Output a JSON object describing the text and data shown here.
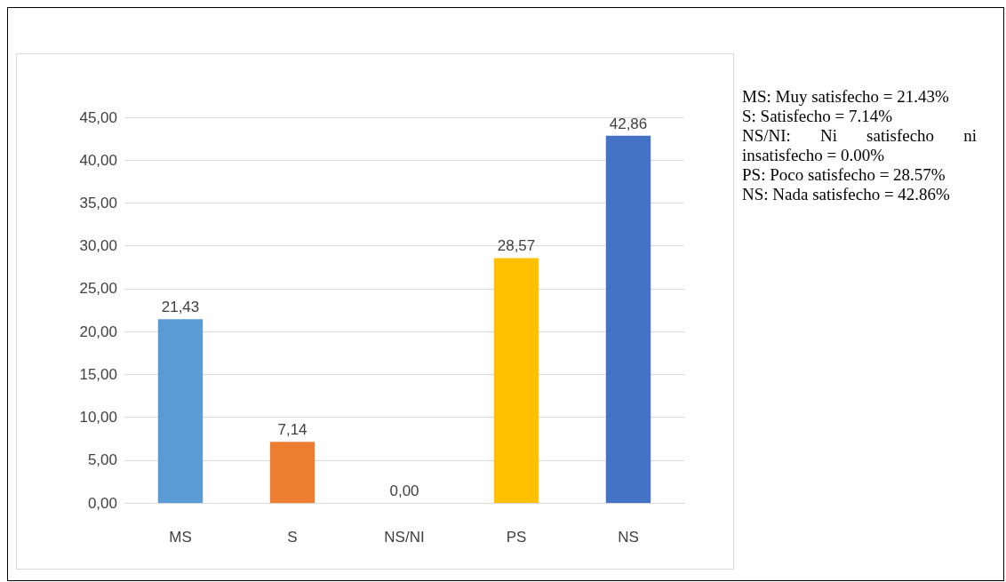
{
  "chart_data": {
    "type": "bar",
    "categories": [
      "MS",
      "S",
      "NS/NI",
      "PS",
      "NS"
    ],
    "values": [
      21.43,
      7.14,
      0,
      28.57,
      42.86
    ],
    "colors": [
      "#5b9bd5",
      "#ed7d31",
      "#a5a5a5",
      "#ffc000",
      "#4472c4"
    ],
    "value_labels": [
      "21,43",
      "7,14",
      "0,00",
      "28,57",
      "42,86"
    ],
    "ylim": [
      0,
      45
    ],
    "yticks": [
      {
        "value": 0,
        "label": "0,00"
      },
      {
        "value": 5,
        "label": "5,00"
      },
      {
        "value": 10,
        "label": "10,00"
      },
      {
        "value": 15,
        "label": "15,00"
      },
      {
        "value": 20,
        "label": "20,00"
      },
      {
        "value": 25,
        "label": "25,00"
      },
      {
        "value": 30,
        "label": "30,00"
      },
      {
        "value": 35,
        "label": "35,00"
      },
      {
        "value": 40,
        "label": "40,00"
      },
      {
        "value": 45,
        "label": "45,00"
      }
    ],
    "grid": "y",
    "annotations": [
      "MS: Muy satisfecho = 21.43%",
      "S: Satisfecho = 7.14%",
      "NS/NI: Ni satisfecho ni insatisfecho = 0.00%",
      "PS: Poco satisfecho = 28.57%",
      "NS: Nada satisfecho = 42.86%"
    ]
  }
}
